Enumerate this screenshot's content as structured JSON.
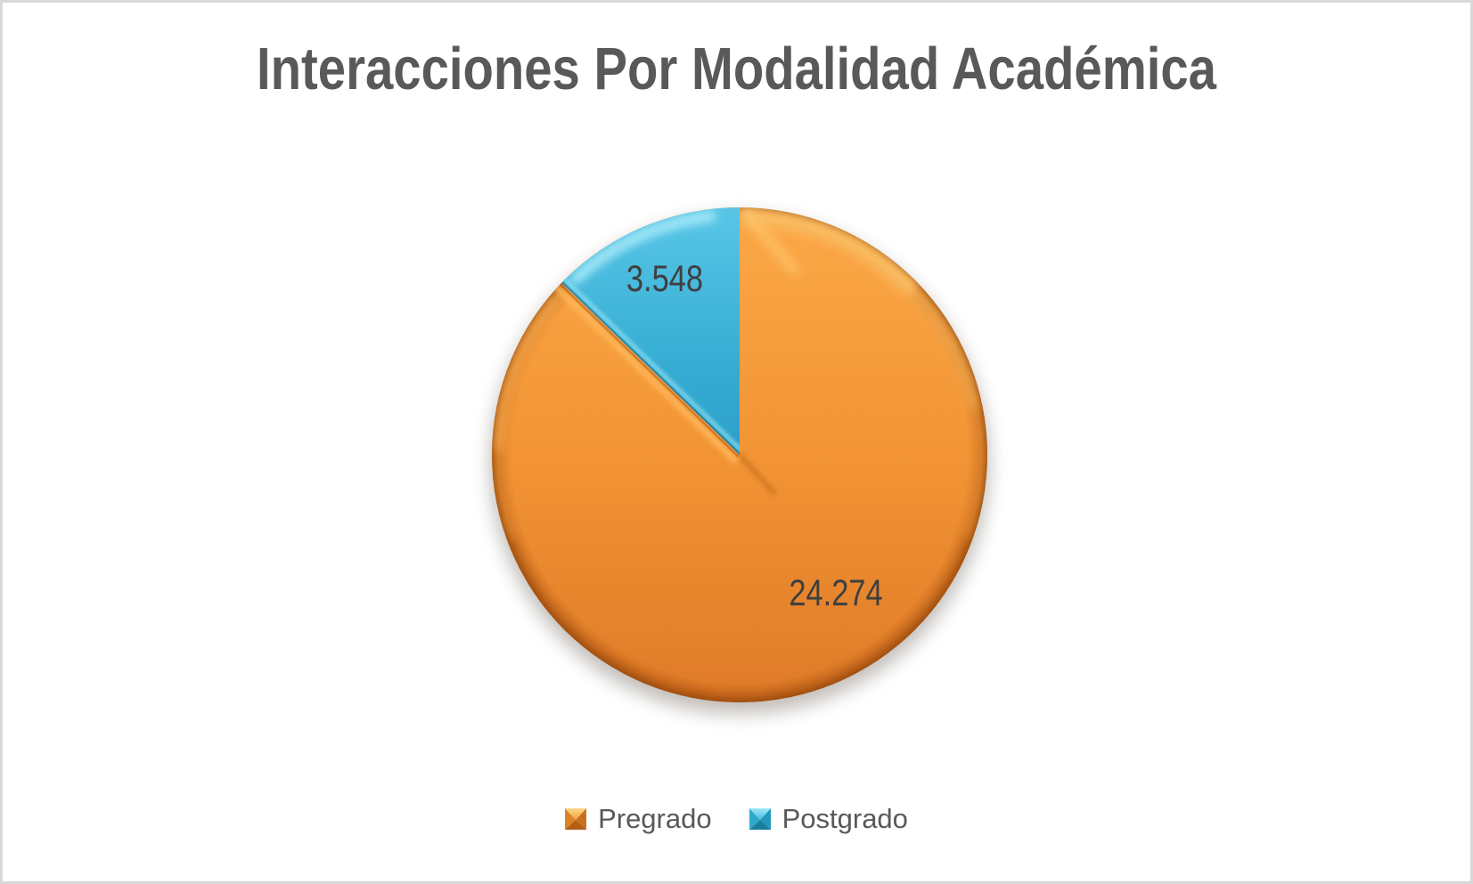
{
  "frame": {
    "background": "#FFFFFF",
    "border_color": "#D8D8D8"
  },
  "title": {
    "text": "Interacciones Por Modalidad Académica",
    "color": "#595959"
  },
  "data_labels": {
    "pregrado": "24.274",
    "postgrado": "3.548",
    "color": "#3F3F3F"
  },
  "legend": {
    "position": "bottom",
    "text_color": "#595959",
    "items": [
      {
        "label": "Pregrado",
        "color": "#F0923A",
        "icon": "beveled-square-swatch"
      },
      {
        "label": "Postgrado",
        "color": "#35B3D9",
        "icon": "beveled-square-swatch"
      }
    ]
  },
  "chart_data": {
    "type": "pie",
    "title": "Interacciones Por Modalidad Académica",
    "categories": [
      "Pregrado",
      "Postgrado"
    ],
    "values": [
      24274,
      3548
    ],
    "value_labels": [
      "24.274",
      "3.548"
    ],
    "percentages": [
      87.25,
      12.75
    ],
    "colors": [
      "#F0923A",
      "#35B3D9"
    ],
    "start_angle_deg": 0,
    "direction": "clockwise",
    "first_slice_at": "12-o-clock",
    "legend_position": "bottom",
    "grid": false,
    "style": "excel-3d-bevel-with-drop-shadow"
  }
}
